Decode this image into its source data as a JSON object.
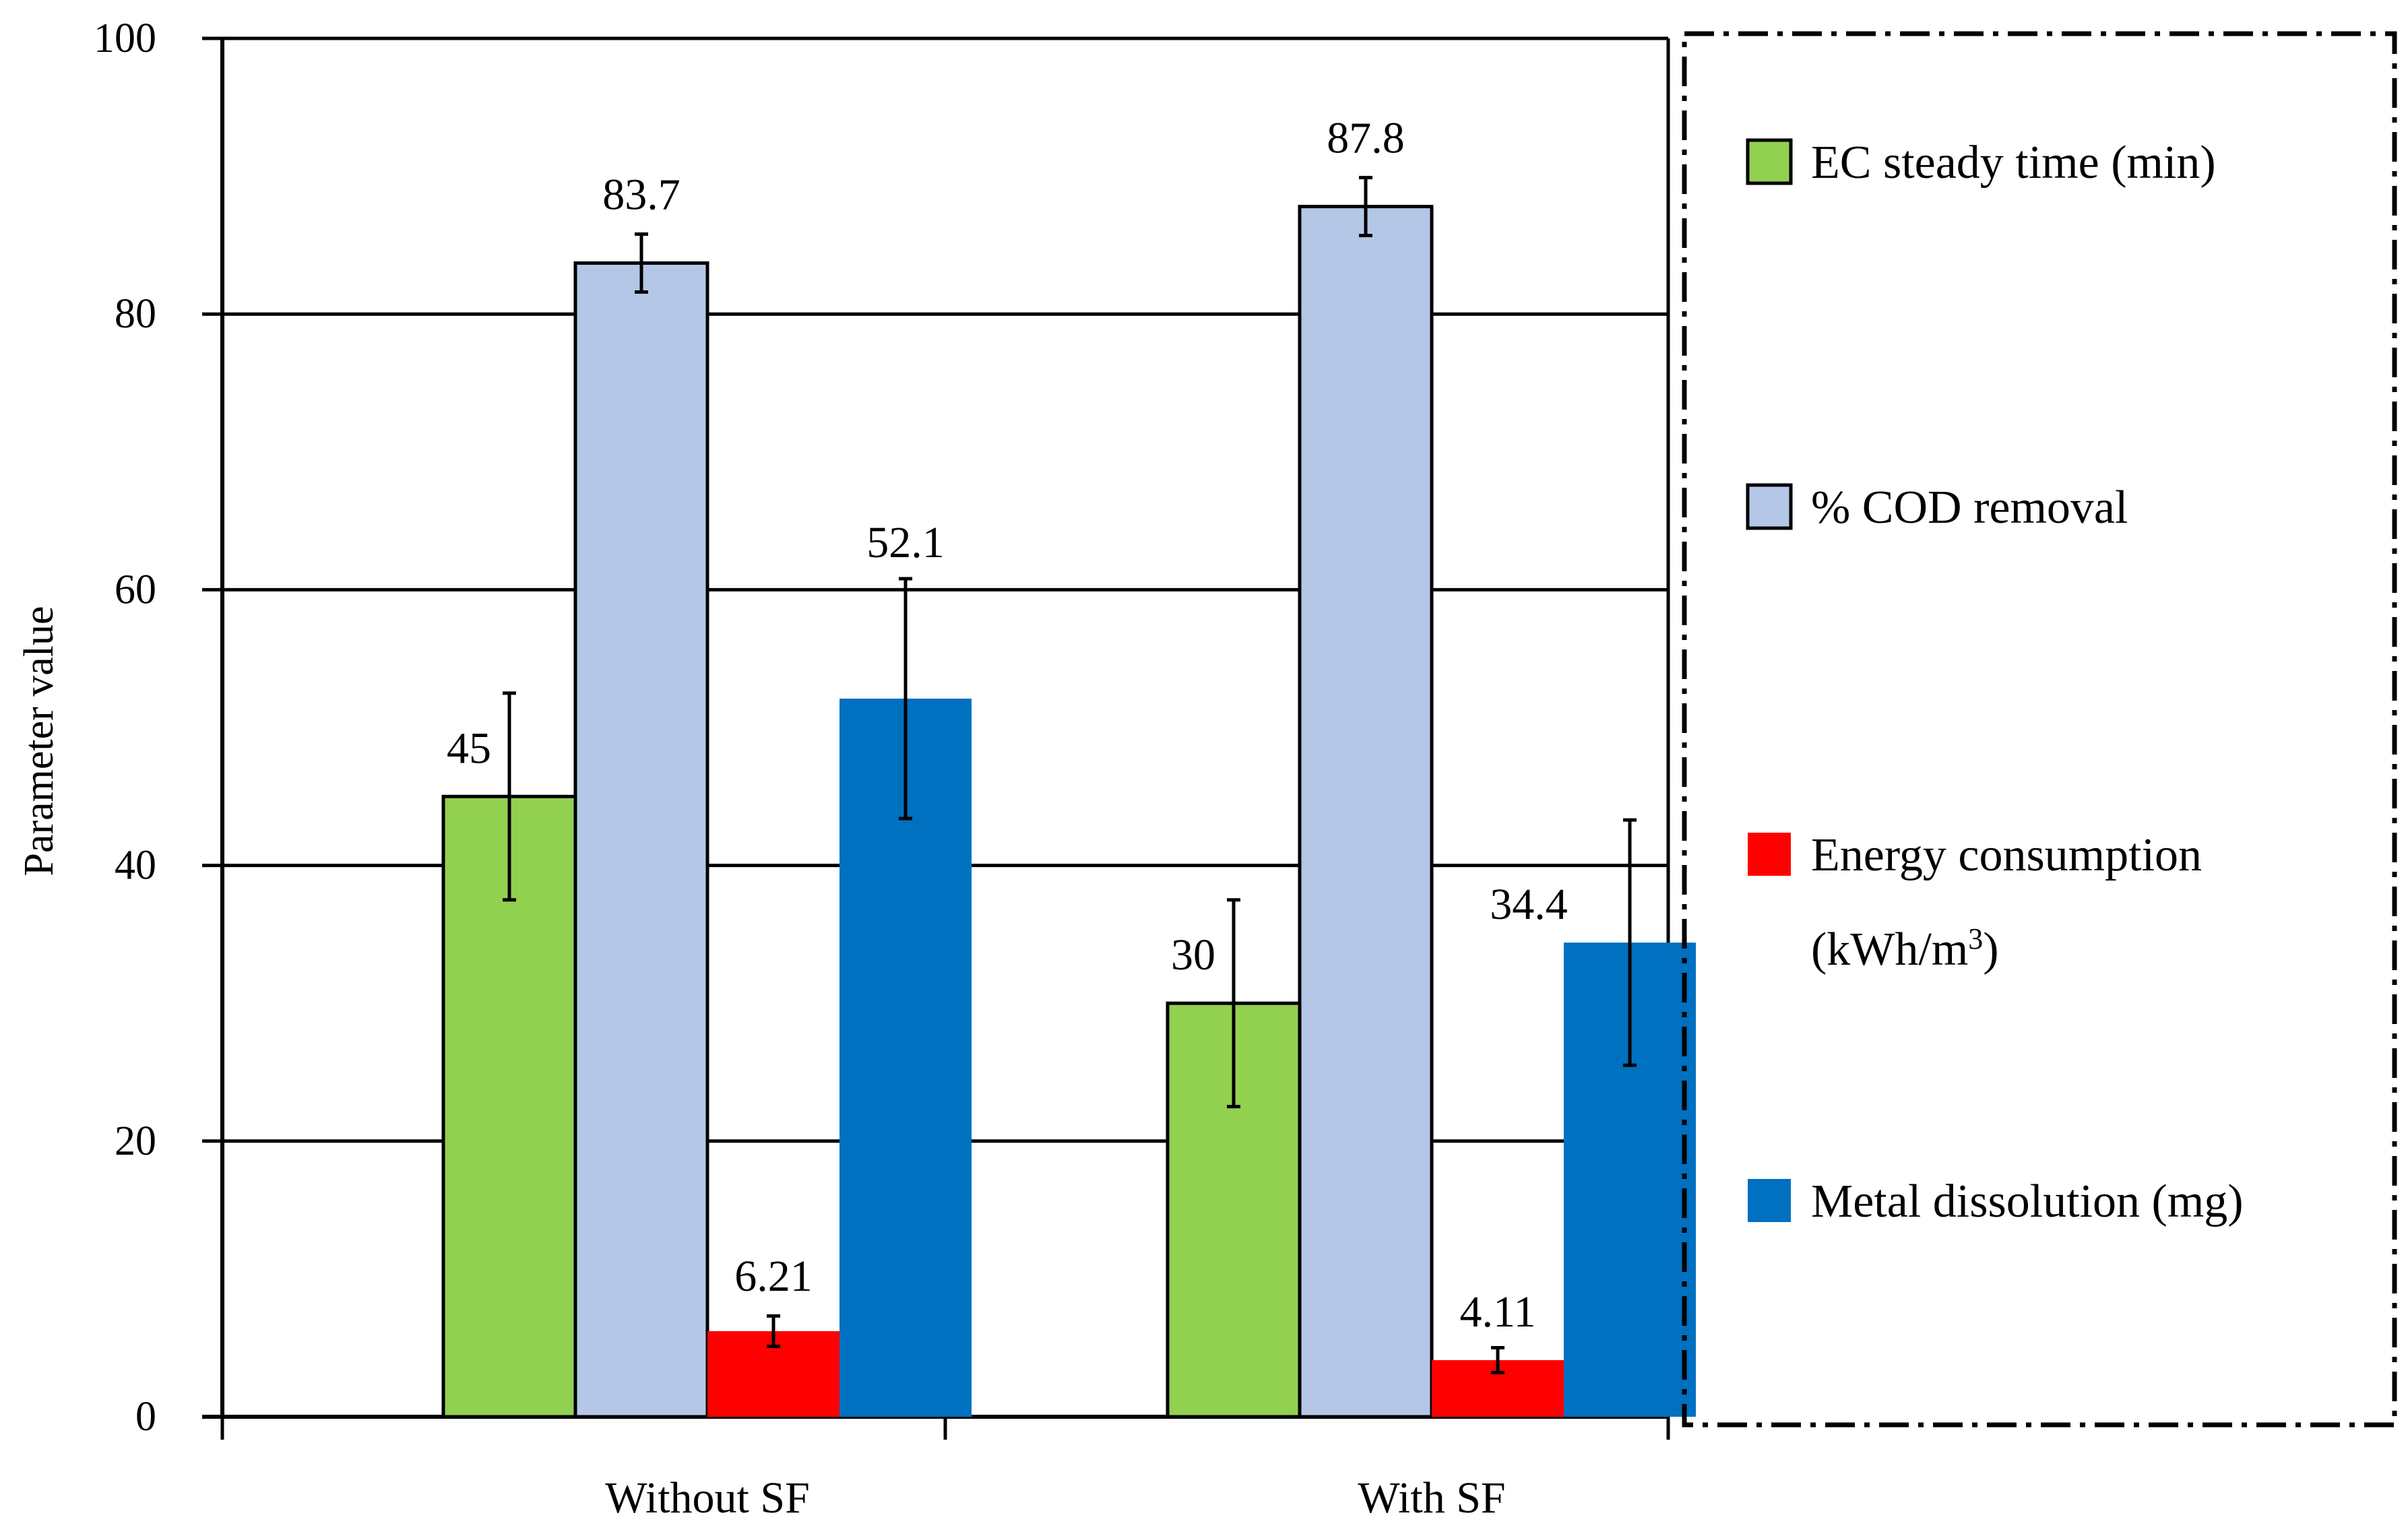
{
  "chart_data": {
    "type": "bar",
    "categories": [
      "Without SF",
      "With SF"
    ],
    "series": [
      {
        "name": "EC steady time (min)",
        "color": "#92d050",
        "values": [
          45,
          30
        ],
        "errors": [
          7.5,
          7.5
        ]
      },
      {
        "name": "% COD removal",
        "color": "#b4c7e7",
        "values": [
          83.7,
          87.8
        ],
        "errors": [
          2.1,
          2.1
        ]
      },
      {
        "name": "Energy consumption (kWh/m3)",
        "legend_lines": [
          "Energy consumption",
          "(kWh/m",
          "3",
          ")"
        ],
        "color": "#ff0000",
        "values": [
          6.21,
          4.11
        ],
        "errors": [
          1.1,
          0.9
        ]
      },
      {
        "name": "Metal dissolution (mg)",
        "color": "#0070c0",
        "values": [
          52.1,
          34.4
        ],
        "errors": [
          8.7,
          8.9
        ]
      }
    ],
    "data_labels": [
      [
        "45",
        "30"
      ],
      [
        "83.7",
        "87.8"
      ],
      [
        "6.21",
        "4.11"
      ],
      [
        "52.1",
        "34.4"
      ]
    ],
    "ylabel": "Parameter value",
    "xlabel": "",
    "ylim": [
      0,
      100
    ],
    "yticks": [
      0,
      20,
      40,
      60,
      80,
      100
    ],
    "ytick_labels": [
      "0",
      "20",
      "40",
      "60",
      "80",
      "100"
    ],
    "grid": "horizontal",
    "legend_position": "right",
    "legend_border": "dash-dot"
  }
}
